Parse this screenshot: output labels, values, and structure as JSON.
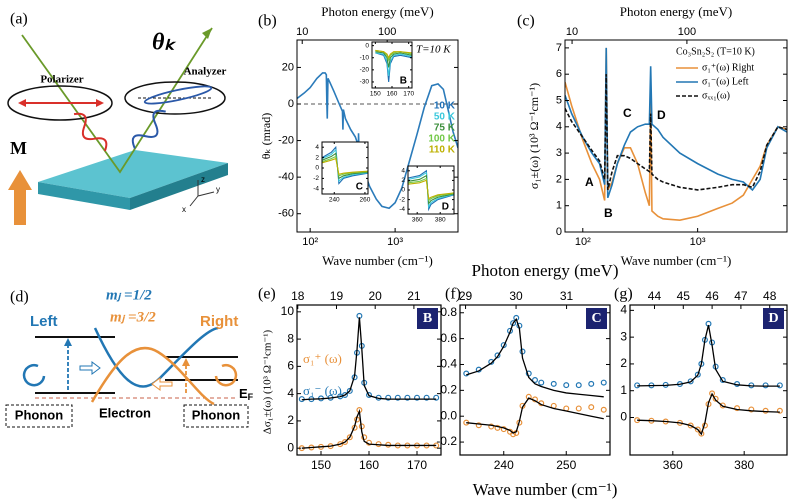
{
  "diagram_a": {
    "label": "(a)",
    "polarizer": "Polarizer",
    "analyzer": "Analyzer",
    "angle": "θₖ",
    "magnetization": "M",
    "axes": [
      "z",
      "y",
      "x"
    ]
  },
  "diagram_d": {
    "label": "(d)",
    "left": "Left",
    "right": "Right",
    "state_1": "mⱼ =1/2",
    "state_2": "mⱼ =3/2",
    "phonon_left": "Phonon",
    "phonon_right": "Phonon",
    "electron": "Electron",
    "fermi": {
      "symbol": "E",
      "sub": "F"
    }
  },
  "figure_efg": {
    "top_axis_label": "Photon energy (meV)",
    "x_axis_label": "Wave number (cm⁻¹)",
    "y_axis_label": "Δσ₁±(ω) (10³ Ω⁻¹cm⁻¹)"
  },
  "chart_data": [
    {
      "type": "line",
      "label": "(b)",
      "top_axis_label": "Photon energy (meV)",
      "x_axis_label": "Wave number (cm⁻¹)",
      "y_axis_label": "θₖ (mrad)",
      "annotation": "T=10 K",
      "xscale": "log",
      "xlim": [
        70,
        5500
      ],
      "xticks": [
        {
          "value": 100,
          "label": "10²"
        },
        {
          "value": 1000,
          "label": "10³"
        }
      ],
      "x2lim": [
        8.68,
        681.9
      ],
      "x2ticks": [
        10,
        100
      ],
      "ylim": [
        -70,
        35
      ],
      "yticks": [
        -60,
        -40,
        -20,
        0,
        20
      ],
      "zero_line": true,
      "x": [
        70,
        85,
        100,
        120,
        140,
        150,
        155,
        157,
        159,
        162,
        170,
        190,
        220,
        240,
        243,
        246,
        260,
        300,
        340,
        365,
        368,
        371,
        375,
        420,
        500,
        600,
        700,
        850,
        1000,
        1200,
        1500,
        1800,
        2200,
        2700,
        3200,
        3700,
        4200,
        4800,
        5500
      ],
      "series": [
        {
          "color": "#2b7bba",
          "values": [
            3,
            6,
            9,
            14,
            17,
            17,
            16,
            2,
            -8,
            14,
            12,
            7,
            0,
            -4,
            -14,
            -3,
            -8,
            -14,
            -18,
            -22,
            -44,
            -16,
            -24,
            -35,
            -45,
            -52,
            -56,
            -57,
            -54,
            -46,
            -30,
            -17,
            -2,
            10,
            11,
            8,
            -3,
            -15,
            -24
          ]
        }
      ],
      "temperatures": [
        {
          "name": "10 K",
          "color": "#1f6fb4"
        },
        {
          "name": "50 K",
          "color": "#3ac8dc"
        },
        {
          "name": "75 K",
          "color": "#3d8f3d"
        },
        {
          "name": "100 K",
          "color": "#72c847"
        },
        {
          "name": "110 K",
          "color": "#bdb000"
        }
      ],
      "insets": [
        {
          "type": "line",
          "label": "B",
          "xlim": [
            148,
            172
          ],
          "xticks": [
            150,
            160,
            170
          ],
          "ylim": [
            -35,
            3
          ],
          "yticks": [
            0,
            -10,
            -20,
            -30
          ],
          "x": [
            150,
            155,
            157,
            158,
            159,
            161,
            165,
            172
          ],
          "series": [
            {
              "values": [
                -6,
                -8,
                -15,
                -30,
                -15,
                -9,
                -8,
                -10
              ]
            },
            {
              "values": [
                -6,
                -7,
                -13,
                -25,
                -13,
                -8,
                -7,
                -9
              ]
            },
            {
              "values": [
                -5,
                -6,
                -10,
                -18,
                -10,
                -7,
                -6,
                -8
              ]
            },
            {
              "values": [
                -4,
                -5,
                -8,
                -12,
                -8,
                -6,
                -5,
                -7
              ]
            },
            {
              "values": [
                -4,
                -5,
                -7,
                -10,
                -7,
                -5,
                -5,
                -6
              ]
            }
          ]
        },
        {
          "type": "line",
          "label": "C",
          "xlim": [
            232,
            262
          ],
          "xticks": [
            240,
            260
          ],
          "ylim": [
            -5,
            5
          ],
          "yticks": [
            -4,
            -2,
            0,
            2,
            4
          ],
          "x": [
            232,
            238,
            241,
            243,
            246,
            252,
            262
          ],
          "series": [
            {
              "values": [
                2,
                3,
                4,
                -3,
                -2,
                -1.5,
                -1
              ]
            },
            {
              "values": [
                1.8,
                2.6,
                3.5,
                -2.5,
                -1.8,
                -1.3,
                -0.9
              ]
            },
            {
              "values": [
                1.5,
                2.2,
                2.8,
                -2,
                -1.5,
                -1.1,
                -0.8
              ]
            },
            {
              "values": [
                1.2,
                1.8,
                2.2,
                -1.5,
                -1.2,
                -0.9,
                -0.7
              ]
            },
            {
              "values": [
                1,
                1.5,
                1.8,
                -1.2,
                -1,
                -0.8,
                -0.6
              ]
            }
          ]
        },
        {
          "type": "line",
          "label": "D",
          "xlim": [
            352,
            392
          ],
          "xticks": [
            360,
            380
          ],
          "ylim": [
            -5,
            5
          ],
          "yticks": [
            -4,
            -2,
            0,
            2,
            4
          ],
          "x": [
            352,
            362,
            368,
            370,
            372,
            378,
            392
          ],
          "series": [
            {
              "values": [
                2.5,
                3,
                4,
                -4,
                -3,
                -2,
                -1
              ]
            },
            {
              "values": [
                2.2,
                2.7,
                3.6,
                -3.5,
                -2.6,
                -1.8,
                -0.9
              ]
            },
            {
              "values": [
                1.8,
                2.2,
                3,
                -2.8,
                -2.2,
                -1.5,
                -0.8
              ]
            },
            {
              "values": [
                1.5,
                1.8,
                2.4,
                -2.2,
                -1.8,
                -1.2,
                -0.7
              ]
            },
            {
              "values": [
                1.2,
                1.5,
                2,
                -1.8,
                -1.5,
                -1,
                -0.6
              ]
            }
          ]
        }
      ]
    },
    {
      "type": "line",
      "label": "(c)",
      "top_axis_label": "Photon energy (meV)",
      "x_axis_label": "Wave number (cm⁻¹)",
      "y_axis_label": "σ₁±(ω) (10³ Ω⁻¹cm⁻¹)",
      "annotation": "Co₃Sn₂S₂ (T=10 K)",
      "xscale": "log",
      "xlim": [
        70,
        6000
      ],
      "xticks": [
        {
          "value": 100,
          "label": "10²"
        },
        {
          "value": 1000,
          "label": "10³"
        }
      ],
      "x2lim": [
        8.68,
        743.9
      ],
      "x2ticks": [
        10,
        100
      ],
      "ylim": [
        0,
        7.3
      ],
      "yticks": [
        0,
        1,
        2,
        3,
        4,
        5,
        6,
        7
      ],
      "point_labels": [
        "A",
        "B",
        "C",
        "D"
      ],
      "x": [
        70,
        80,
        100,
        120,
        140,
        155,
        160,
        165,
        180,
        200,
        230,
        260,
        300,
        350,
        380,
        390,
        400,
        450,
        500,
        700,
        1000,
        1500,
        2000,
        2500,
        3000,
        3500,
        4000,
        5000,
        6000
      ],
      "series": [
        {
          "name": "σ₁⁺(ω) Right",
          "color": "#e8913a",
          "values": [
            5.7,
            4.8,
            3.5,
            2.6,
            2.0,
            1.2,
            7.0,
            1.6,
            1.9,
            2.6,
            3.2,
            3.2,
            2.6,
            1.5,
            1.0,
            5.3,
            0.8,
            0.6,
            0.5,
            0.45,
            0.6,
            0.9,
            1.1,
            1.4,
            2.0,
            2.5,
            3.3,
            4.0,
            3.9
          ]
        },
        {
          "name": "σ₁⁻(ω) Left",
          "color": "#2277b4",
          "values": [
            5.2,
            4.5,
            3.6,
            3.0,
            2.6,
            1.8,
            7.0,
            1.3,
            1.8,
            2.6,
            3.3,
            3.8,
            4.0,
            4.1,
            4.1,
            6.3,
            4.1,
            3.9,
            3.6,
            3.0,
            2.6,
            2.2,
            2.0,
            1.9,
            1.6,
            2.0,
            3.2,
            4.0,
            3.8
          ]
        },
        {
          "name": "σₓₓ₁(ω)",
          "color": "#111111",
          "dash": true,
          "values": [
            4.7,
            4.2,
            3.6,
            3.1,
            2.7,
            2.0,
            6.0,
            1.6,
            2.3,
            2.9,
            2.9,
            2.8,
            2.6,
            2.4,
            2.3,
            4.5,
            2.2,
            2.0,
            1.9,
            1.7,
            1.6,
            1.7,
            1.8,
            1.8,
            1.7,
            2.3,
            3.3,
            4.0,
            3.9
          ]
        }
      ]
    },
    {
      "type": "line",
      "label": "(e)",
      "tag": "B",
      "markers": true,
      "xlim": [
        145,
        175
      ],
      "xticks": [
        150,
        160,
        170
      ],
      "x2lim": [
        17.98,
        21.7
      ],
      "x2ticks": [
        18,
        19,
        20,
        21
      ],
      "ylim": [
        -0.5,
        10.5
      ],
      "yticks": [
        0,
        2,
        4,
        6,
        8,
        10
      ],
      "x": [
        146,
        148,
        150,
        152,
        154,
        155,
        156,
        157,
        157.5,
        158,
        158.5,
        159,
        160,
        162,
        164,
        166,
        168,
        170,
        172,
        174
      ],
      "series": [
        {
          "name": "σ₁⁺ (ω)",
          "color": "#e8913a",
          "values": [
            0,
            0.05,
            0.1,
            0.15,
            0.3,
            0.45,
            0.8,
            1.5,
            2.1,
            2.8,
            1.6,
            0.8,
            0.4,
            0.3,
            0.25,
            0.2,
            0.2,
            0.2,
            0.2,
            0.2
          ],
          "fit": [
            0,
            0.05,
            0.1,
            0.15,
            0.3,
            0.45,
            0.8,
            1.6,
            2.3,
            2.7,
            1.2,
            0.5,
            0.3,
            0.25,
            0.2,
            0.2,
            0.2,
            0.2,
            0.2,
            0.2
          ]
        },
        {
          "name": "σ₁⁻ (ω)",
          "color": "#2277b4",
          "values": [
            3.6,
            3.6,
            3.65,
            3.7,
            3.8,
            3.9,
            4.2,
            5.2,
            7.0,
            9.7,
            7.5,
            4.8,
            3.9,
            3.7,
            3.7,
            3.7,
            3.7,
            3.7,
            3.7,
            3.7
          ],
          "fit": [
            3.55,
            3.6,
            3.62,
            3.68,
            3.78,
            3.9,
            4.2,
            5.3,
            7.2,
            9.6,
            7.3,
            4.6,
            3.85,
            3.65,
            3.6,
            3.6,
            3.6,
            3.6,
            3.6,
            3.6
          ]
        }
      ]
    },
    {
      "type": "line",
      "label": "(f)",
      "tag": "C",
      "markers": true,
      "xlim": [
        233,
        257
      ],
      "xticks": [
        240,
        250
      ],
      "x2lim": [
        28.89,
        31.86
      ],
      "x2ticks": [
        29,
        30,
        31
      ],
      "ylim": [
        -0.3,
        0.86
      ],
      "yticks": [
        -0.2,
        {
          "value": 0,
          "label": "0.0"
        },
        0.2,
        0.4,
        0.6,
        0.8
      ],
      "x": [
        234,
        236,
        238,
        239,
        240,
        241,
        241.5,
        242,
        242.5,
        243,
        244,
        245,
        246,
        248,
        250,
        252,
        254,
        256
      ],
      "series": [
        {
          "color": "#e8913a",
          "values": [
            -0.05,
            -0.07,
            -0.08,
            -0.09,
            -0.1,
            -0.12,
            -0.14,
            -0.13,
            -0.05,
            0.08,
            0.15,
            0.13,
            0.1,
            0.08,
            0.06,
            0.06,
            0.07,
            0.05
          ],
          "fit": [
            -0.05,
            -0.06,
            -0.07,
            -0.08,
            -0.09,
            -0.11,
            -0.13,
            -0.12,
            -0.04,
            0.07,
            0.14,
            0.12,
            0.09,
            0.06,
            0.04,
            0.02,
            0.0,
            -0.02
          ]
        },
        {
          "color": "#2277b4",
          "values": [
            0.33,
            0.36,
            0.42,
            0.47,
            0.55,
            0.66,
            0.72,
            0.76,
            0.7,
            0.5,
            0.33,
            0.28,
            0.26,
            0.25,
            0.24,
            0.24,
            0.25,
            0.26
          ],
          "fit": [
            0.32,
            0.35,
            0.41,
            0.46,
            0.54,
            0.65,
            0.72,
            0.75,
            0.68,
            0.45,
            0.3,
            0.25,
            0.23,
            0.2,
            0.18,
            0.17,
            0.16,
            0.15
          ]
        }
      ]
    },
    {
      "type": "line",
      "label": "(g)",
      "tag": "D",
      "markers": true,
      "xlim": [
        348,
        392
      ],
      "xticks": [
        360,
        380
      ],
      "x2lim": [
        43.15,
        48.6
      ],
      "x2ticks": [
        44,
        45,
        46,
        47,
        48
      ],
      "ylim": [
        -1.4,
        4.2
      ],
      "yticks": [
        0,
        1,
        2,
        3,
        4
      ],
      "x": [
        350,
        354,
        358,
        362,
        365,
        367,
        368,
        369,
        370,
        371,
        372,
        374,
        378,
        382,
        386,
        390
      ],
      "series": [
        {
          "color": "#e8913a",
          "values": [
            -0.1,
            -0.12,
            -0.15,
            -0.2,
            -0.3,
            -0.45,
            -0.6,
            -0.3,
            0.5,
            0.9,
            0.7,
            0.45,
            0.35,
            0.3,
            0.25,
            0.25
          ],
          "fit": [
            -0.1,
            -0.12,
            -0.15,
            -0.2,
            -0.3,
            -0.45,
            -0.62,
            -0.2,
            0.55,
            0.88,
            0.65,
            0.42,
            0.3,
            0.25,
            0.22,
            0.2
          ]
        },
        {
          "color": "#2277b4",
          "values": [
            1.2,
            1.2,
            1.22,
            1.25,
            1.35,
            1.6,
            2.0,
            2.9,
            3.5,
            2.8,
            1.9,
            1.4,
            1.25,
            1.2,
            1.2,
            1.2
          ],
          "fit": [
            1.18,
            1.19,
            1.2,
            1.24,
            1.33,
            1.58,
            2.0,
            2.9,
            3.45,
            2.7,
            1.8,
            1.35,
            1.22,
            1.18,
            1.17,
            1.17
          ]
        }
      ]
    }
  ]
}
